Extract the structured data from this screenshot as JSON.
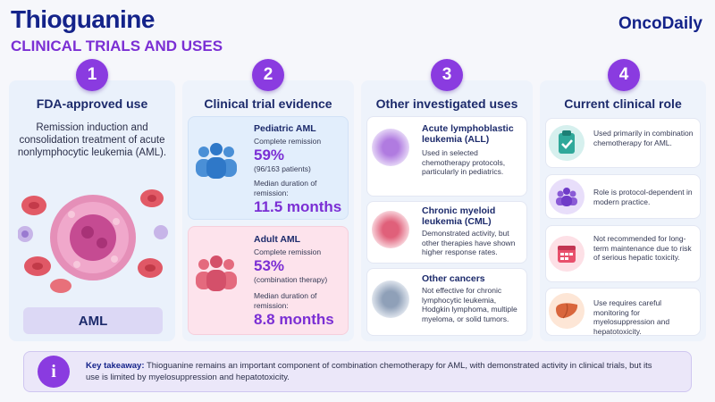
{
  "header": {
    "title": "Thioguanine",
    "subtitle": "CLINICAL TRIALS AND USES",
    "brand": "OncoDaily"
  },
  "columns": [
    {
      "num": "1",
      "heading": "FDA-approved use",
      "description": "Remission induction and consolidation treatment of acute nonlymphocytic leukemia (AML).",
      "tag": "AML"
    },
    {
      "num": "2",
      "heading": "Clinical trial evidence",
      "pediatric": {
        "title": "Pediatric AML",
        "remission_label": "Complete remission",
        "percent": "59%",
        "patients": "(96/163 patients)",
        "duration_label": "Median duration of remission:",
        "duration": "11.5 months"
      },
      "adult": {
        "title": "Adult AML",
        "remission_label": "Complete remission",
        "percent": "53%",
        "patients": "(combination therapy)",
        "duration_label": "Median duration of remission:",
        "duration": "8.8 months"
      }
    },
    {
      "num": "3",
      "heading": "Other investigated uses",
      "items": [
        {
          "title": "Acute lymphoblastic leukemia (ALL)",
          "text": "Used in selected chemotherapy protocols, particularly in pediatrics."
        },
        {
          "title": "Chronic myeloid leukemia (CML)",
          "text": "Demonstrated activity, but other therapies have shown higher response rates."
        },
        {
          "title": "Other cancers",
          "text": "Not effective for chronic lymphocytic leukemia, Hodgkin lymphoma, multiple myeloma, or solid tumors."
        }
      ]
    },
    {
      "num": "4",
      "heading": "Current clinical role",
      "items": [
        {
          "text": "Used primarily in combination chemotherapy for AML."
        },
        {
          "text": "Role is protocol-dependent in modern practice."
        },
        {
          "text": "Not recommended for long-term maintenance due to risk of serious hepatic toxicity."
        },
        {
          "text": "Use requires careful monitoring for myelosuppression and hepatotoxicity."
        }
      ]
    }
  ],
  "takeaway": {
    "label": "Key takeaway:",
    "text": "Thioguanine remains an important component of combination chemotherapy for AML, with demonstrated activity in clinical trials, but its use is limited by myelosuppression and hepatotoxicity."
  },
  "colors": {
    "primary": "#14238a",
    "accent": "#8a3be0",
    "pediatric_bg": "#e4f0fd",
    "adult_bg": "#fde6ee"
  },
  "icons": [
    "clipboard-check-icon",
    "people-icon",
    "calendar-icon",
    "liver-icon",
    "info-icon"
  ]
}
